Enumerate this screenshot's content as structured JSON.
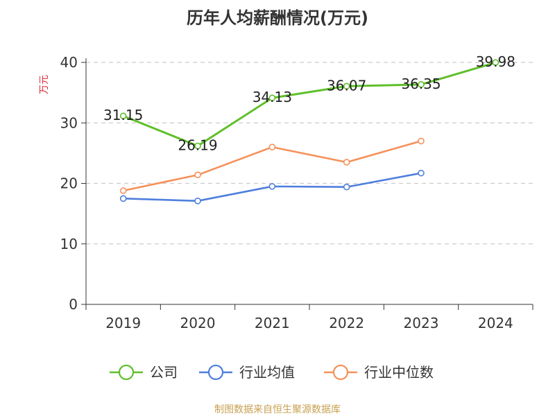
{
  "chart_data": {
    "type": "line",
    "title": "历年人均薪酬情况(万元)",
    "ylabel": "万元",
    "xlabel": "",
    "categories": [
      "2019",
      "2020",
      "2021",
      "2022",
      "2023",
      "2024"
    ],
    "ylim": [
      0,
      40
    ],
    "yticks": [
      0,
      10,
      20,
      30,
      40
    ],
    "grid": true,
    "legend_position": "bottom",
    "series": [
      {
        "name": "公司",
        "color": "#5fbf2a",
        "values": [
          31.15,
          26.19,
          34.13,
          36.07,
          36.35,
          39.98
        ],
        "labels": [
          "31.15",
          "26.19",
          "34.13",
          "36.07",
          "36.35",
          "39.98"
        ]
      },
      {
        "name": "行业均值",
        "color": "#4f7fdc",
        "values": [
          17.5,
          17.1,
          19.5,
          19.4,
          21.7,
          null
        ]
      },
      {
        "name": "行业中位数",
        "color": "#f5915a",
        "values": [
          18.8,
          21.4,
          26.0,
          23.5,
          27.0,
          null
        ]
      }
    ],
    "source": "制图数据来自恒生聚源数据库",
    "colors": {
      "ylabel": "#e0303a",
      "source": "#c8a050",
      "grid": "#cccccc",
      "axis": "#333333"
    }
  }
}
